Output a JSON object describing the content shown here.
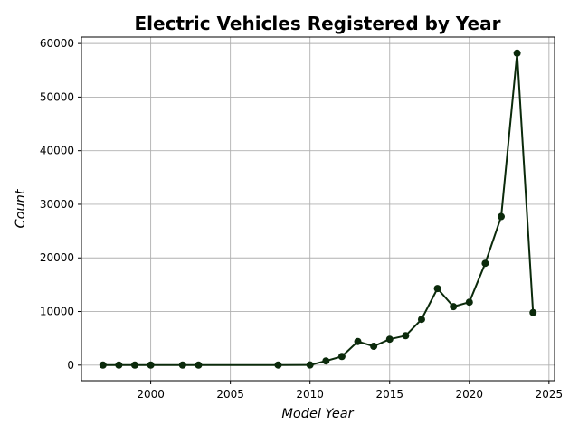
{
  "chart_data": {
    "type": "line",
    "title": "Electric Vehicles Registered by Year",
    "xlabel": "Model Year",
    "ylabel": "Count",
    "xlim": [
      1995.65,
      2025.35
    ],
    "ylim": [
      -2900,
      61200
    ],
    "xticks": [
      2000,
      2005,
      2010,
      2015,
      2020,
      2025
    ],
    "yticks": [
      0,
      10000,
      20000,
      30000,
      40000,
      50000,
      60000
    ],
    "grid": true,
    "line_color": "#0b2a0b",
    "marker_color": "#0b2a0b",
    "series": [
      {
        "x": [
          1997,
          1998,
          1999,
          2000,
          2002,
          2003,
          2008,
          2010,
          2011,
          2012,
          2013,
          2014,
          2015,
          2016,
          2017,
          2018,
          2019,
          2020,
          2021,
          2022,
          2023,
          2024
        ],
        "values": [
          1,
          1,
          5,
          8,
          2,
          1,
          19,
          23,
          776,
          1614,
          4399,
          3509,
          4826,
          5483,
          8534,
          14286,
          10913,
          11740,
          18997,
          27708,
          58200,
          9800
        ]
      }
    ]
  }
}
